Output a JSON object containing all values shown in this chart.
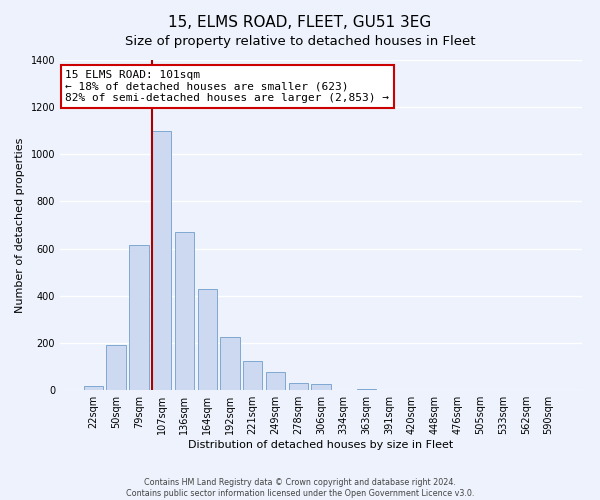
{
  "title": "15, ELMS ROAD, FLEET, GU51 3EG",
  "subtitle": "Size of property relative to detached houses in Fleet",
  "xlabel": "Distribution of detached houses by size in Fleet",
  "ylabel": "Number of detached properties",
  "bar_labels": [
    "22sqm",
    "50sqm",
    "79sqm",
    "107sqm",
    "136sqm",
    "164sqm",
    "192sqm",
    "221sqm",
    "249sqm",
    "278sqm",
    "306sqm",
    "334sqm",
    "363sqm",
    "391sqm",
    "420sqm",
    "448sqm",
    "476sqm",
    "505sqm",
    "533sqm",
    "562sqm",
    "590sqm"
  ],
  "bar_values": [
    15,
    190,
    615,
    1100,
    670,
    430,
    225,
    125,
    75,
    30,
    25,
    0,
    5,
    0,
    0,
    0,
    0,
    0,
    0,
    0,
    0
  ],
  "bar_color": "#ccd9f0",
  "bar_edge_color": "#7fa8d0",
  "vline_x_index": 3,
  "vline_color": "#aa0000",
  "annotation_line1": "15 ELMS ROAD: 101sqm",
  "annotation_line2": "← 18% of detached houses are smaller (623)",
  "annotation_line3": "82% of semi-detached houses are larger (2,853) →",
  "annotation_box_color": "#ffffff",
  "annotation_box_edge": "#cc0000",
  "ylim": [
    0,
    1400
  ],
  "yticks": [
    0,
    200,
    400,
    600,
    800,
    1000,
    1200,
    1400
  ],
  "footer1": "Contains HM Land Registry data © Crown copyright and database right 2024.",
  "footer2": "Contains public sector information licensed under the Open Government Licence v3.0.",
  "bg_color": "#edf2fc",
  "grid_color": "#ffffff",
  "title_fontsize": 11,
  "subtitle_fontsize": 9.5,
  "axis_label_fontsize": 8,
  "tick_fontsize": 7,
  "annotation_fontsize": 8,
  "footer_fontsize": 5.8
}
